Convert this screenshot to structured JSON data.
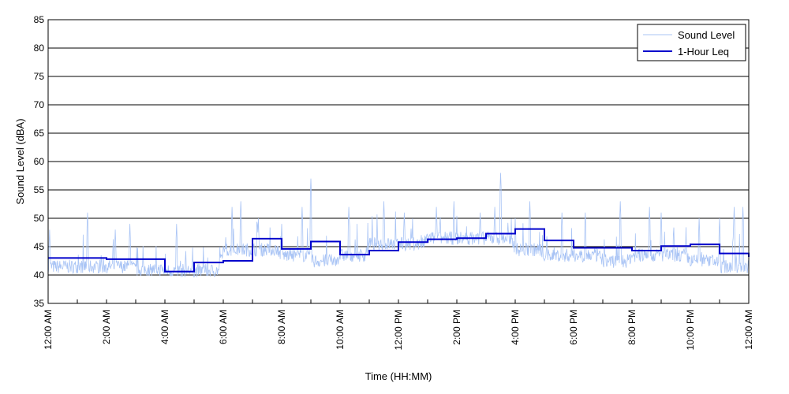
{
  "chart_data": {
    "type": "line",
    "title": "",
    "xlabel": "Time (HH:MM)",
    "ylabel": "Sound Level (dBA)",
    "ylim": [
      35,
      85
    ],
    "yticks": [
      35,
      40,
      45,
      50,
      55,
      60,
      65,
      70,
      75,
      80,
      85
    ],
    "xlim_hours": [
      0,
      24
    ],
    "xtick_labels": [
      "12:00 AM",
      "2:00 AM",
      "4:00 AM",
      "6:00 AM",
      "8:00 AM",
      "10:00 AM",
      "12:00 PM",
      "2:00 PM",
      "4:00 PM",
      "6:00 PM",
      "8:00 PM",
      "10:00 PM",
      "12:00 AM"
    ],
    "grid": "horizontal",
    "legend_position": "top-right",
    "series": [
      {
        "name": "Sound Level",
        "color": "#a9c4f5",
        "baseline_by_hour": [
          41,
          41,
          41,
          40.5,
          40.3,
          40.3,
          44,
          44,
          43,
          42,
          43,
          45,
          45,
          46,
          46,
          46,
          44,
          43,
          43,
          42,
          43,
          43,
          42,
          41
        ],
        "peaks": [
          [
            0.05,
            48
          ],
          [
            1.35,
            51
          ],
          [
            2.3,
            48
          ],
          [
            2.8,
            49
          ],
          [
            4.4,
            49
          ],
          [
            6.3,
            52
          ],
          [
            6.6,
            53
          ],
          [
            7.2,
            50
          ],
          [
            8.0,
            49
          ],
          [
            8.7,
            52
          ],
          [
            9.0,
            57
          ],
          [
            10.3,
            52
          ],
          [
            11.5,
            53
          ],
          [
            12.2,
            51
          ],
          [
            13.3,
            52
          ],
          [
            13.9,
            53
          ],
          [
            14.8,
            51
          ],
          [
            15.3,
            52
          ],
          [
            15.5,
            58
          ],
          [
            16.0,
            50
          ],
          [
            16.5,
            53
          ],
          [
            17.6,
            51
          ],
          [
            18.4,
            51
          ],
          [
            19.6,
            53
          ],
          [
            20.6,
            52
          ],
          [
            21.0,
            51
          ],
          [
            22.3,
            50
          ],
          [
            23.0,
            50
          ],
          [
            23.5,
            52
          ],
          [
            23.8,
            52
          ]
        ]
      },
      {
        "name": "1-Hour Leq",
        "color": "#0000cc",
        "values": [
          43.0,
          43.0,
          42.8,
          42.8,
          40.6,
          42.2,
          42.5,
          46.4,
          44.6,
          45.9,
          43.6,
          44.3,
          45.8,
          46.3,
          46.5,
          47.3,
          48.1,
          46.1,
          44.8,
          44.8,
          44.3,
          45.1,
          45.4,
          43.8,
          43.2
        ]
      }
    ]
  }
}
